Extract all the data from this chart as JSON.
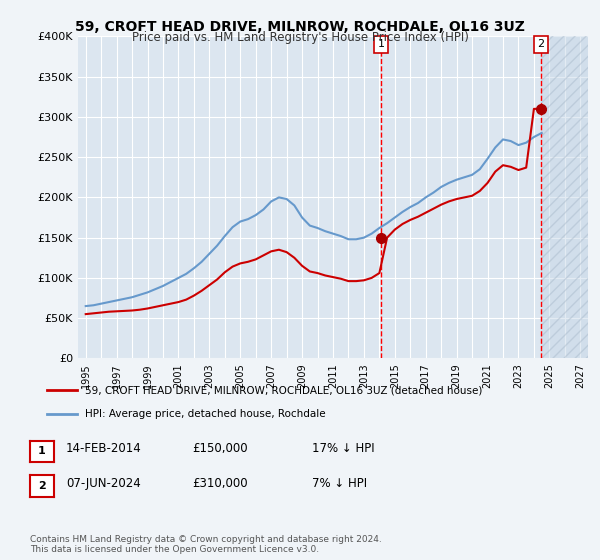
{
  "title": "59, CROFT HEAD DRIVE, MILNROW, ROCHDALE, OL16 3UZ",
  "subtitle": "Price paid vs. HM Land Registry's House Price Index (HPI)",
  "legend_line1": "59, CROFT HEAD DRIVE, MILNROW, ROCHDALE, OL16 3UZ (detached house)",
  "legend_line2": "HPI: Average price, detached house, Rochdale",
  "annotation1_label": "1",
  "annotation1_date": "14-FEB-2014",
  "annotation1_price": "£150,000",
  "annotation1_hpi": "17% ↓ HPI",
  "annotation2_label": "2",
  "annotation2_date": "07-JUN-2024",
  "annotation2_price": "£310,000",
  "annotation2_hpi": "7% ↓ HPI",
  "footer": "Contains HM Land Registry data © Crown copyright and database right 2024.\nThis data is licensed under the Open Government Licence v3.0.",
  "sale1_year": 2014.12,
  "sale1_price": 150000,
  "sale2_year": 2024.44,
  "sale2_price": 310000,
  "ylim": [
    0,
    400000
  ],
  "xlim": [
    1994.5,
    2027.5
  ],
  "hatch_start": 2024.44,
  "red_line_color": "#cc0000",
  "blue_line_color": "#6699cc",
  "background_color": "#e8eef4",
  "plot_bg_color": "#dce6f0",
  "grid_color": "#ffffff",
  "hpi_years": [
    1995,
    1995.5,
    1996,
    1996.5,
    1997,
    1997.5,
    1998,
    1998.5,
    1999,
    1999.5,
    2000,
    2000.5,
    2001,
    2001.5,
    2002,
    2002.5,
    2003,
    2003.5,
    2004,
    2004.5,
    2005,
    2005.5,
    2006,
    2006.5,
    2007,
    2007.5,
    2008,
    2008.5,
    2009,
    2009.5,
    2010,
    2010.5,
    2011,
    2011.5,
    2012,
    2012.5,
    2013,
    2013.5,
    2014,
    2014.5,
    2015,
    2015.5,
    2016,
    2016.5,
    2017,
    2017.5,
    2018,
    2018.5,
    2019,
    2019.5,
    2020,
    2020.5,
    2021,
    2021.5,
    2022,
    2022.5,
    2023,
    2023.5,
    2024,
    2024.5
  ],
  "hpi_values": [
    65000,
    66000,
    68000,
    70000,
    72000,
    74000,
    76000,
    79000,
    82000,
    86000,
    90000,
    95000,
    100000,
    105000,
    112000,
    120000,
    130000,
    140000,
    152000,
    163000,
    170000,
    173000,
    178000,
    185000,
    195000,
    200000,
    198000,
    190000,
    175000,
    165000,
    162000,
    158000,
    155000,
    152000,
    148000,
    148000,
    150000,
    155000,
    162000,
    168000,
    175000,
    182000,
    188000,
    193000,
    200000,
    206000,
    213000,
    218000,
    222000,
    225000,
    228000,
    235000,
    248000,
    262000,
    272000,
    270000,
    265000,
    268000,
    275000,
    280000
  ],
  "price_years": [
    1995,
    1995.5,
    1996,
    1996.5,
    1997,
    1997.5,
    1998,
    1998.5,
    1999,
    1999.5,
    2000,
    2000.5,
    2001,
    2001.5,
    2002,
    2002.5,
    2003,
    2003.5,
    2004,
    2004.5,
    2005,
    2005.5,
    2006,
    2006.5,
    2007,
    2007.5,
    2008,
    2008.5,
    2009,
    2009.5,
    2010,
    2010.5,
    2011,
    2011.5,
    2012,
    2012.5,
    2013,
    2013.5,
    2014,
    2014.5,
    2015,
    2015.5,
    2016,
    2016.5,
    2017,
    2017.5,
    2018,
    2018.5,
    2019,
    2019.5,
    2020,
    2020.5,
    2021,
    2021.5,
    2022,
    2022.5,
    2023,
    2023.5,
    2024,
    2024.5
  ],
  "price_values": [
    55000,
    56000,
    57000,
    58000,
    58500,
    59000,
    59500,
    60500,
    62000,
    64000,
    66000,
    68000,
    70000,
    73000,
    78000,
    84000,
    91000,
    98000,
    107000,
    114000,
    118000,
    120000,
    123000,
    128000,
    133000,
    135000,
    132000,
    125000,
    115000,
    108000,
    106000,
    103000,
    101000,
    99000,
    96000,
    96000,
    97000,
    100000,
    106000,
    150000,
    160000,
    167000,
    172000,
    176000,
    181000,
    186000,
    191000,
    195000,
    198000,
    200000,
    202000,
    208000,
    218000,
    232000,
    240000,
    238000,
    234000,
    237000,
    310000,
    310000
  ]
}
